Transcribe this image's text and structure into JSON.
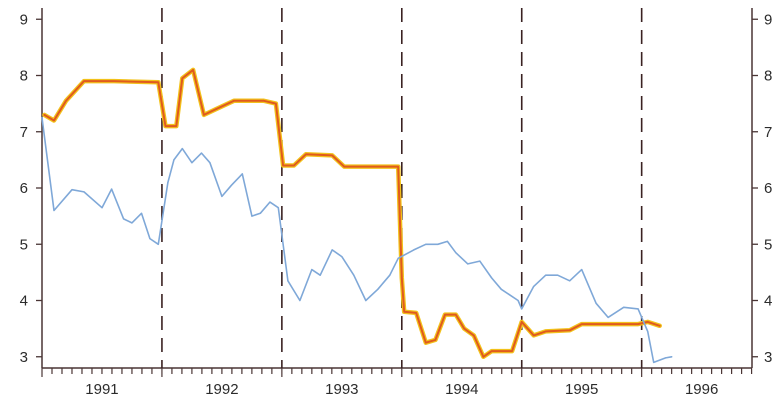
{
  "chart_data": {
    "type": "line",
    "title": "",
    "xlabel": "",
    "ylabel": "",
    "xlim": [
      1991.0,
      1996.92
    ],
    "ylim": [
      2.8,
      9.2
    ],
    "yticks": [
      3,
      4,
      5,
      6,
      7,
      8,
      9
    ],
    "ytick_labels": [
      "3",
      "4",
      "5",
      "6",
      "7",
      "8",
      "9"
    ],
    "year_labels": [
      "1991",
      "1992",
      "1993",
      "1994",
      "1995",
      "1996"
    ],
    "year_boundaries": [
      1992,
      1993,
      1994,
      1995,
      1996
    ],
    "grid": false,
    "legend": "none",
    "series": [
      {
        "color": "#e05a1e",
        "highlight": "#f2c21b",
        "points": [
          [
            1991.02,
            7.3
          ],
          [
            1991.1,
            7.2
          ],
          [
            1991.2,
            7.55
          ],
          [
            1991.35,
            7.9
          ],
          [
            1991.6,
            7.9
          ],
          [
            1991.97,
            7.88
          ],
          [
            1992.03,
            7.1
          ],
          [
            1992.12,
            7.1
          ],
          [
            1992.17,
            7.95
          ],
          [
            1992.26,
            8.1
          ],
          [
            1992.35,
            7.3
          ],
          [
            1992.45,
            7.4
          ],
          [
            1992.6,
            7.55
          ],
          [
            1992.85,
            7.55
          ],
          [
            1992.95,
            7.5
          ],
          [
            1993.01,
            6.4
          ],
          [
            1993.1,
            6.4
          ],
          [
            1993.2,
            6.6
          ],
          [
            1993.42,
            6.58
          ],
          [
            1993.52,
            6.38
          ],
          [
            1993.97,
            6.38
          ],
          [
            1994.0,
            4.4
          ],
          [
            1994.02,
            3.8
          ],
          [
            1994.12,
            3.78
          ],
          [
            1994.2,
            3.25
          ],
          [
            1994.28,
            3.3
          ],
          [
            1994.36,
            3.75
          ],
          [
            1994.45,
            3.75
          ],
          [
            1994.52,
            3.5
          ],
          [
            1994.6,
            3.38
          ],
          [
            1994.68,
            3.0
          ],
          [
            1994.75,
            3.1
          ],
          [
            1994.92,
            3.1
          ],
          [
            1995.0,
            3.62
          ],
          [
            1995.1,
            3.38
          ],
          [
            1995.2,
            3.45
          ],
          [
            1995.4,
            3.47
          ],
          [
            1995.5,
            3.58
          ],
          [
            1995.8,
            3.58
          ],
          [
            1995.97,
            3.58
          ],
          [
            1996.05,
            3.62
          ],
          [
            1996.15,
            3.55
          ]
        ]
      },
      {
        "color": "#7fa8d8",
        "points": [
          [
            1991.0,
            7.25
          ],
          [
            1991.1,
            5.6
          ],
          [
            1991.25,
            5.97
          ],
          [
            1991.35,
            5.93
          ],
          [
            1991.5,
            5.65
          ],
          [
            1991.58,
            5.98
          ],
          [
            1991.68,
            5.45
          ],
          [
            1991.75,
            5.38
          ],
          [
            1991.83,
            5.55
          ],
          [
            1991.9,
            5.1
          ],
          [
            1991.97,
            5.0
          ],
          [
            1992.05,
            6.1
          ],
          [
            1992.1,
            6.5
          ],
          [
            1992.17,
            6.7
          ],
          [
            1992.25,
            6.45
          ],
          [
            1992.33,
            6.62
          ],
          [
            1992.4,
            6.45
          ],
          [
            1992.5,
            5.85
          ],
          [
            1992.58,
            6.05
          ],
          [
            1992.67,
            6.25
          ],
          [
            1992.75,
            5.5
          ],
          [
            1992.82,
            5.55
          ],
          [
            1992.9,
            5.75
          ],
          [
            1992.97,
            5.65
          ],
          [
            1993.05,
            4.35
          ],
          [
            1993.15,
            4.0
          ],
          [
            1993.25,
            4.55
          ],
          [
            1993.32,
            4.45
          ],
          [
            1993.42,
            4.9
          ],
          [
            1993.5,
            4.78
          ],
          [
            1993.6,
            4.45
          ],
          [
            1993.7,
            4.0
          ],
          [
            1993.8,
            4.2
          ],
          [
            1993.9,
            4.45
          ],
          [
            1993.97,
            4.75
          ],
          [
            1994.1,
            4.9
          ],
          [
            1994.2,
            5.0
          ],
          [
            1994.3,
            5.0
          ],
          [
            1994.38,
            5.05
          ],
          [
            1994.45,
            4.85
          ],
          [
            1994.55,
            4.65
          ],
          [
            1994.65,
            4.7
          ],
          [
            1994.75,
            4.4
          ],
          [
            1994.83,
            4.2
          ],
          [
            1994.97,
            4.0
          ],
          [
            1995.0,
            3.85
          ],
          [
            1995.1,
            4.25
          ],
          [
            1995.2,
            4.45
          ],
          [
            1995.3,
            4.45
          ],
          [
            1995.4,
            4.35
          ],
          [
            1995.5,
            4.55
          ],
          [
            1995.62,
            3.95
          ],
          [
            1995.72,
            3.7
          ],
          [
            1995.85,
            3.88
          ],
          [
            1995.97,
            3.85
          ],
          [
            1996.05,
            3.45
          ],
          [
            1996.1,
            2.9
          ],
          [
            1996.2,
            2.98
          ],
          [
            1996.25,
            3.0
          ]
        ]
      }
    ]
  }
}
